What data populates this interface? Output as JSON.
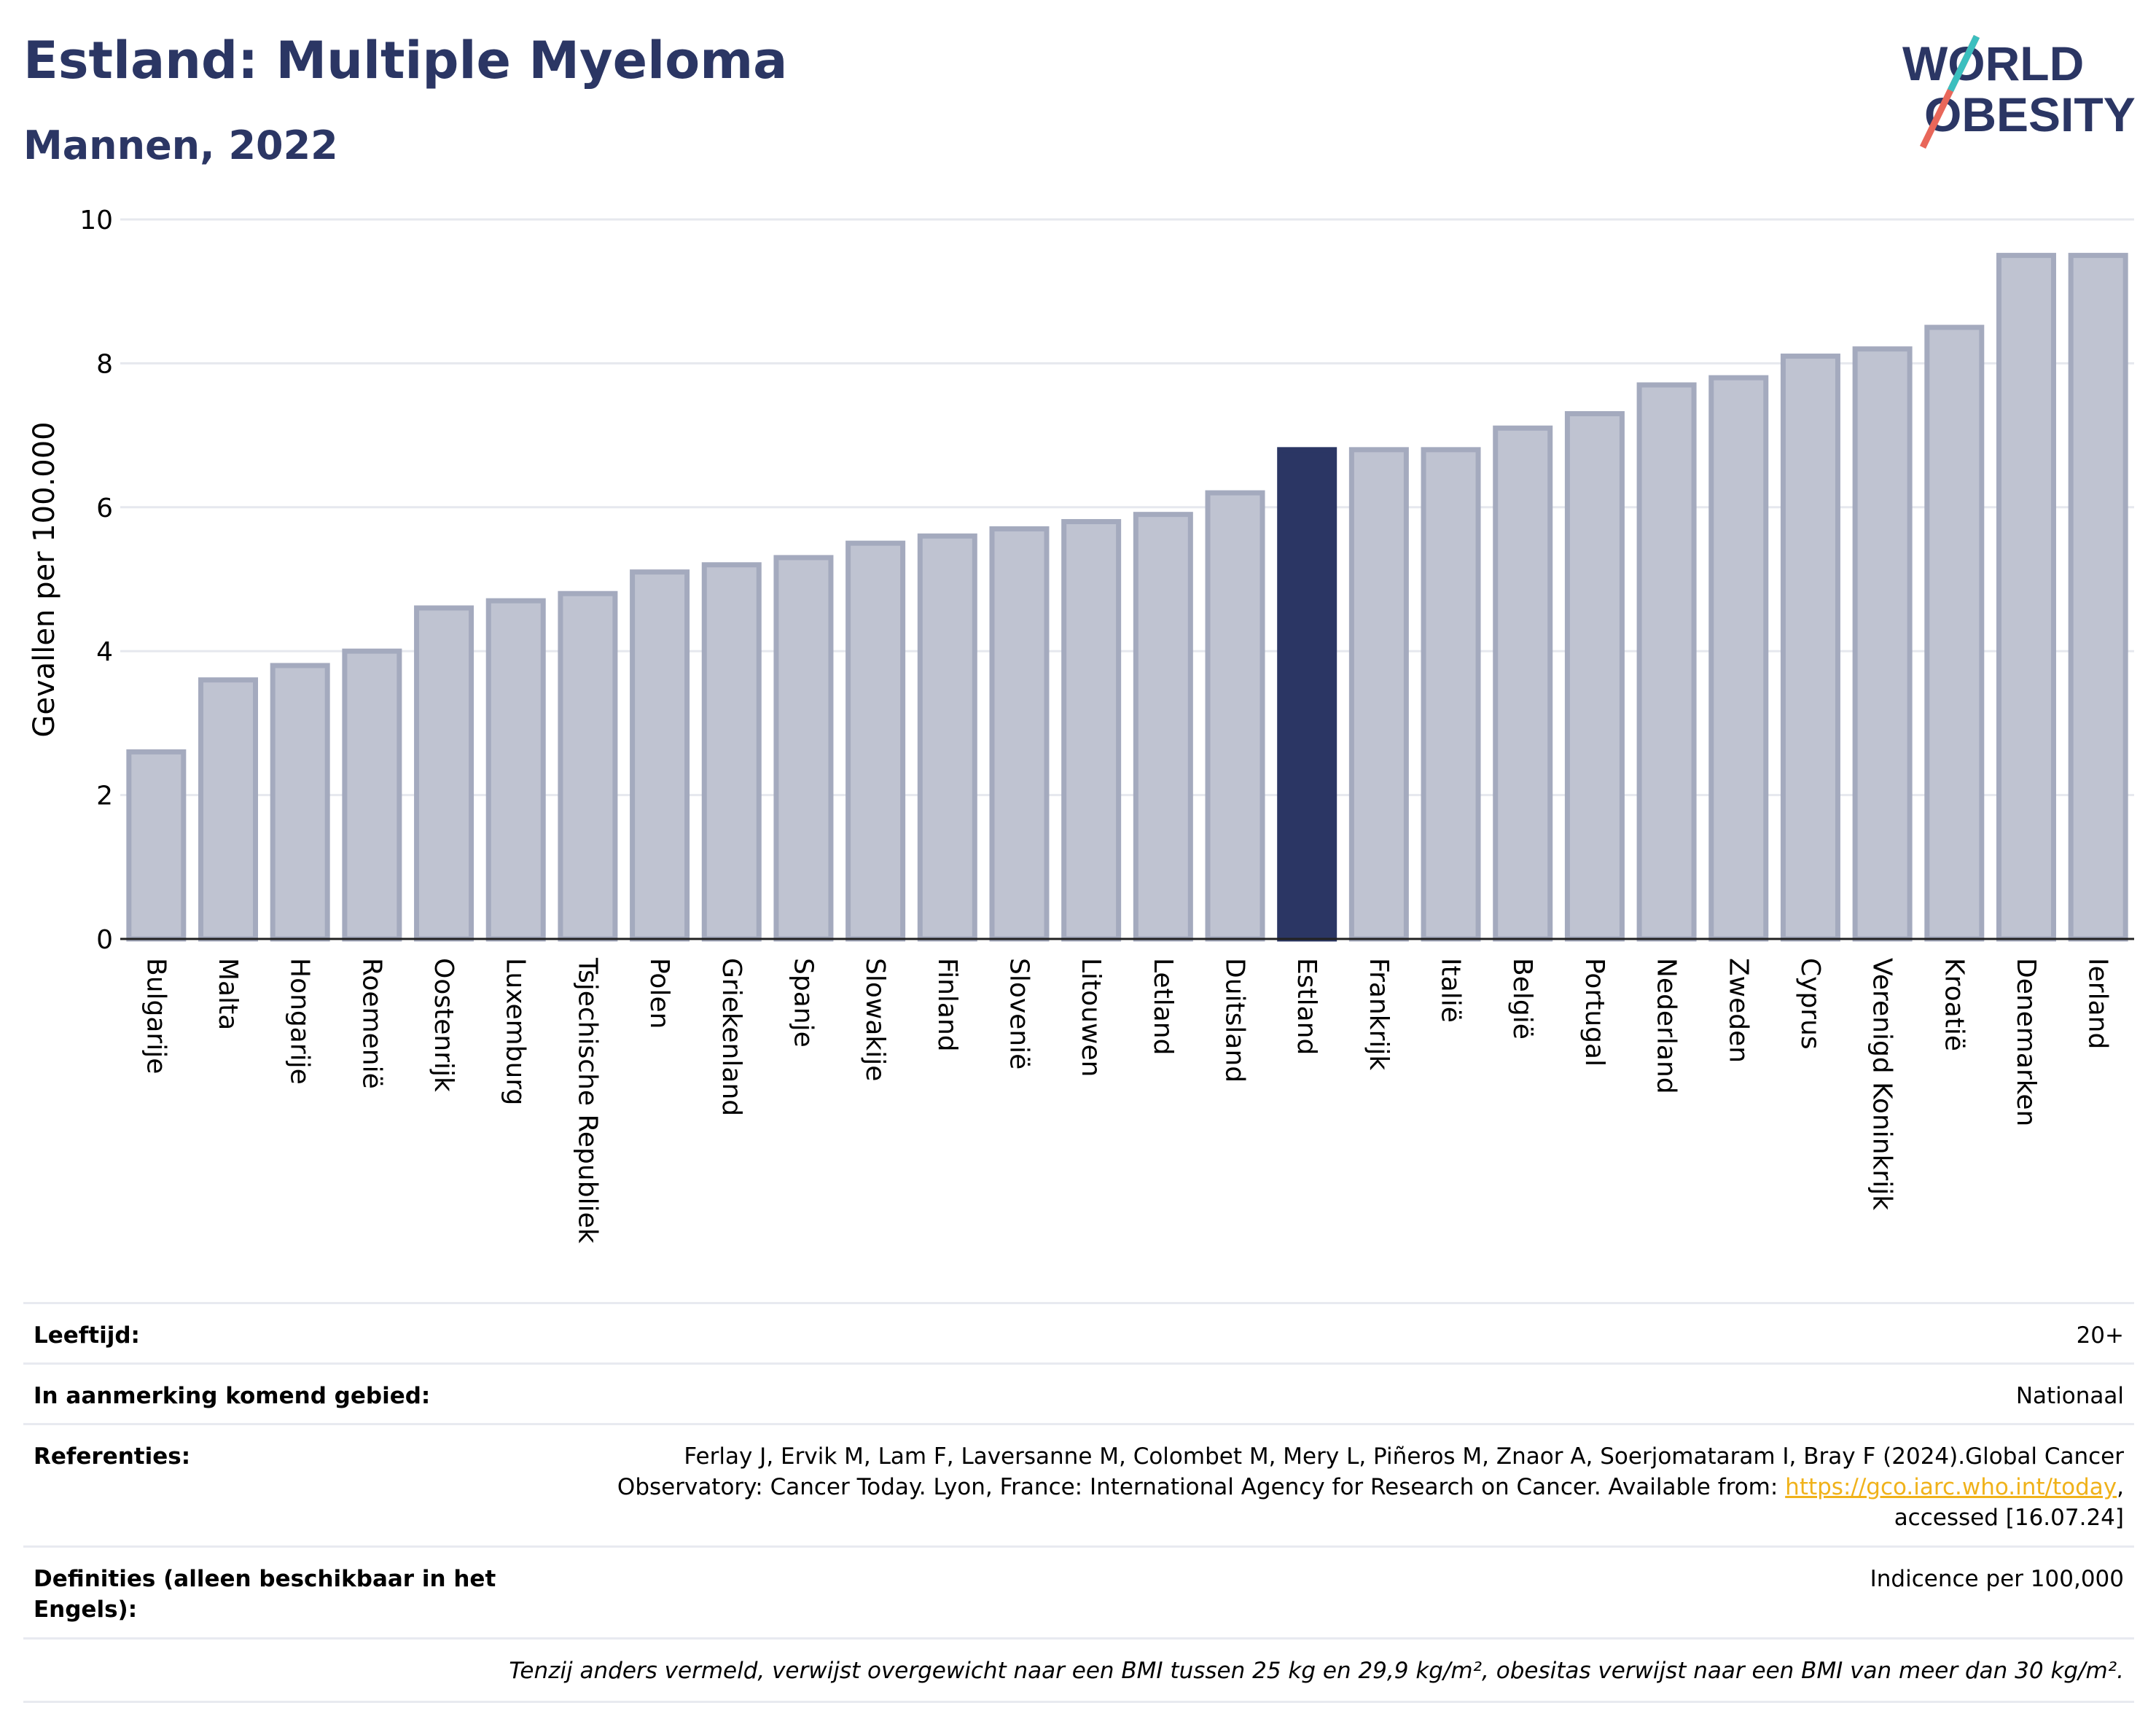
{
  "title": "Estland: Multiple Myeloma",
  "subtitle": "Mannen, 2022",
  "logo": {
    "line1": "WORLD",
    "line2": "OBESITY"
  },
  "colors": {
    "highlight": "#2b3664",
    "bar": "#bfc3d1",
    "bar_border": "#a4aabe",
    "title": "#2b3664",
    "link": "#f0b21a"
  },
  "chart_data": {
    "type": "bar",
    "categories": [
      "Bulgarije",
      "Malta",
      "Hongarije",
      "Roemenië",
      "Oostenrijk",
      "Luxemburg",
      "Tsjechische Republiek",
      "Polen",
      "Griekenland",
      "Spanje",
      "Slowakije",
      "Finland",
      "Slovenië",
      "Litouwen",
      "Letland",
      "Duitsland",
      "Estland",
      "Frankrijk",
      "Italië",
      "België",
      "Portugal",
      "Nederland",
      "Zweden",
      "Cyprus",
      "Verenigd Koninkrijk",
      "Kroatië",
      "Denemarken",
      "Ierland"
    ],
    "values": [
      2.6,
      3.6,
      3.8,
      4.0,
      4.6,
      4.7,
      4.8,
      5.1,
      5.2,
      5.3,
      5.5,
      5.6,
      5.7,
      5.8,
      5.9,
      6.2,
      6.8,
      6.8,
      6.8,
      7.1,
      7.3,
      7.7,
      7.8,
      8.1,
      8.2,
      8.5,
      9.5,
      9.5
    ],
    "highlight": "Estland",
    "ylabel": "Gevallen per 100.000",
    "xlabel": "",
    "ylim": [
      0,
      10
    ],
    "yticks": [
      0,
      2,
      4,
      6,
      8,
      10
    ],
    "grid": true
  },
  "info": [
    {
      "label": "Leeftijd:",
      "value": "20+"
    },
    {
      "label": "In aanmerking komend gebied:",
      "value": "Nationaal"
    },
    {
      "label": "Referenties:",
      "value": "Ferlay J, Ervik M, Lam F, Laversanne M, Colombet M, Mery L, Piñeros M, Znaor A, Soerjomataram I, Bray F (2024).Global Cancer Observatory: Cancer Today. Lyon, France: International Agency for Research on Cancer. Available from:",
      "link": "https://gco.iarc.who.int/today",
      "suffix": ", accessed [16.07.24]"
    },
    {
      "label": "Definities (alleen beschikbaar in het Engels):",
      "value": "Indicence per 100,000"
    }
  ],
  "note": "Tenzij anders vermeld, verwijst overgewicht naar een BMI tussen 25 kg en 29,9 kg/m², obesitas verwijst naar een BMI van meer dan 30 kg/m²."
}
